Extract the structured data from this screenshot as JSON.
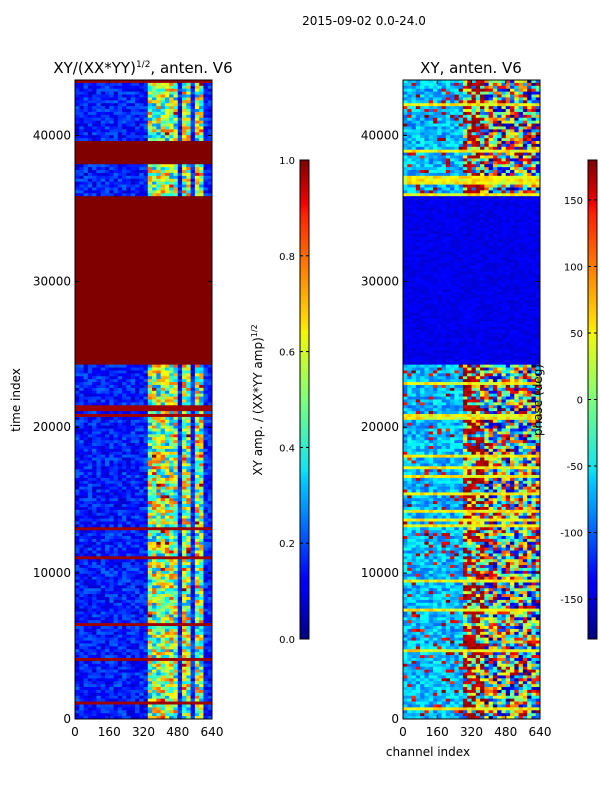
{
  "suptitle": "2015-09-02 0.0-24.0",
  "chart_data": [
    {
      "type": "heatmap",
      "title": "XY/(XX*YY)",
      "title_sup": "1/2",
      "title_suffix": ", anten. V6",
      "xlabel": "",
      "ylabel": "time index",
      "x_ticks": [
        "0",
        "160",
        "320",
        "480",
        "640"
      ],
      "xlim": [
        0,
        640
      ],
      "y_ticks": [
        "0",
        "10000",
        "20000",
        "30000",
        "40000"
      ],
      "ylim": [
        0,
        43800
      ],
      "colorbar": {
        "label": "XY amp. / (XX*YY amp)",
        "label_sup": "1/2",
        "ticks": [
          "0.0",
          "0.2",
          "0.4",
          "0.6",
          "0.8",
          "1.0"
        ],
        "range": [
          0,
          1
        ]
      },
      "saturated_bands": [
        [
          24300,
          35900
        ],
        [
          38000,
          39700
        ]
      ],
      "active_channels": [
        [
          340,
          390
        ],
        [
          400,
          430
        ],
        [
          440,
          470
        ],
        [
          500,
          530
        ],
        [
          560,
          600
        ]
      ]
    },
    {
      "type": "heatmap",
      "title": "XY, anten. V6",
      "xlabel": "channel index",
      "ylabel": "",
      "x_ticks": [
        "0",
        "160",
        "320",
        "480",
        "640"
      ],
      "xlim": [
        0,
        640
      ],
      "y_ticks": [
        "0",
        "10000",
        "20000",
        "30000",
        "40000"
      ],
      "ylim": [
        0,
        43800
      ],
      "colorbar": {
        "label": "phase (deg)",
        "ticks": [
          "-150",
          "-100",
          "-50",
          "0",
          "50",
          "100",
          "150"
        ],
        "range": [
          -180,
          180
        ]
      },
      "flat_band": [
        24300,
        35900
      ]
    }
  ]
}
